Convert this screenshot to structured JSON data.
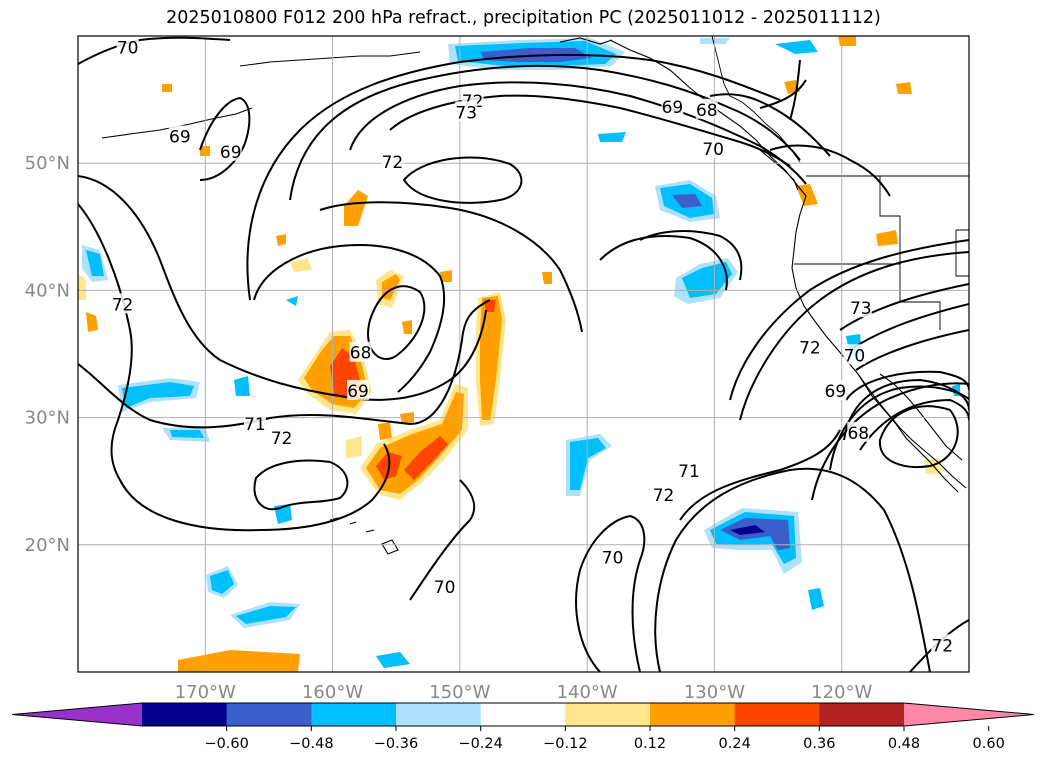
{
  "title": "2025010800 F012 200 hPa refract., precipitation PC (2025011012 - 2025011112)",
  "map": {
    "lon_range": [
      -180,
      -110
    ],
    "lat_range": [
      10,
      60
    ],
    "lat_ticks": [
      {
        "value": 20,
        "label": "20°N"
      },
      {
        "value": 30,
        "label": "30°N"
      },
      {
        "value": 40,
        "label": "40°N"
      },
      {
        "value": 50,
        "label": "50°N"
      }
    ],
    "lon_ticks": [
      {
        "value": -170,
        "label": "170°W"
      },
      {
        "value": -160,
        "label": "160°W"
      },
      {
        "value": -150,
        "label": "150°W"
      },
      {
        "value": -140,
        "label": "140°W"
      },
      {
        "value": -130,
        "label": "130°W"
      },
      {
        "value": -120,
        "label": "120°W"
      }
    ],
    "grid": true,
    "contour_labels": [
      {
        "text": "70",
        "lon": -176.1,
        "lat": 59.1
      },
      {
        "text": "69",
        "lon": -172.0,
        "lat": 52.1
      },
      {
        "text": "69",
        "lon": -168.0,
        "lat": 50.9
      },
      {
        "text": "72",
        "lon": -149.0,
        "lat": 54.9
      },
      {
        "text": "73",
        "lon": -149.5,
        "lat": 54.0
      },
      {
        "text": "72",
        "lon": -155.3,
        "lat": 50.1
      },
      {
        "text": "69",
        "lon": -133.3,
        "lat": 54.4
      },
      {
        "text": "68",
        "lon": -130.6,
        "lat": 54.2
      },
      {
        "text": "70",
        "lon": -130.1,
        "lat": 51.1
      },
      {
        "text": "72",
        "lon": -176.5,
        "lat": 38.9
      },
      {
        "text": "68",
        "lon": -157.8,
        "lat": 35.1
      },
      {
        "text": "69",
        "lon": -158.0,
        "lat": 32.1
      },
      {
        "text": "71",
        "lon": -166.1,
        "lat": 29.5
      },
      {
        "text": "72",
        "lon": -164.0,
        "lat": 28.4
      },
      {
        "text": "73",
        "lon": -118.5,
        "lat": 38.6
      },
      {
        "text": "70",
        "lon": -119.0,
        "lat": 34.9
      },
      {
        "text": "72",
        "lon": -122.5,
        "lat": 35.5
      },
      {
        "text": "69",
        "lon": -120.5,
        "lat": 32.1
      },
      {
        "text": "68",
        "lon": -118.7,
        "lat": 28.8
      },
      {
        "text": "71",
        "lon": -132.0,
        "lat": 25.8
      },
      {
        "text": "72",
        "lon": -134.0,
        "lat": 23.9
      },
      {
        "text": "70",
        "lon": -151.2,
        "lat": 16.7
      },
      {
        "text": "70",
        "lon": -138.0,
        "lat": 19.0
      },
      {
        "text": "72",
        "lon": -112.1,
        "lat": 12.1
      }
    ]
  },
  "colorbar": {
    "extend": "both",
    "ticks": [
      "−0.60",
      "−0.48",
      "−0.36",
      "−0.24",
      "−0.12",
      "0.12",
      "0.24",
      "0.36",
      "0.48",
      "0.60"
    ],
    "colors": [
      "#9932cc",
      "#00008b",
      "#3a5fcd",
      "#00bfff",
      "#ade2fa",
      "#ffffff",
      "#ffe68a",
      "#ffa000",
      "#ff4500",
      "#b22222",
      "#ff88a8"
    ]
  },
  "fill_colors": {
    "light_blue": "#ade2fa",
    "blue": "#00bfff",
    "mid_blue": "#3a5fcd",
    "dark_blue": "#00008b",
    "light_yellow": "#ffe68a",
    "orange": "#ffa000",
    "red_orange": "#ff4500"
  }
}
